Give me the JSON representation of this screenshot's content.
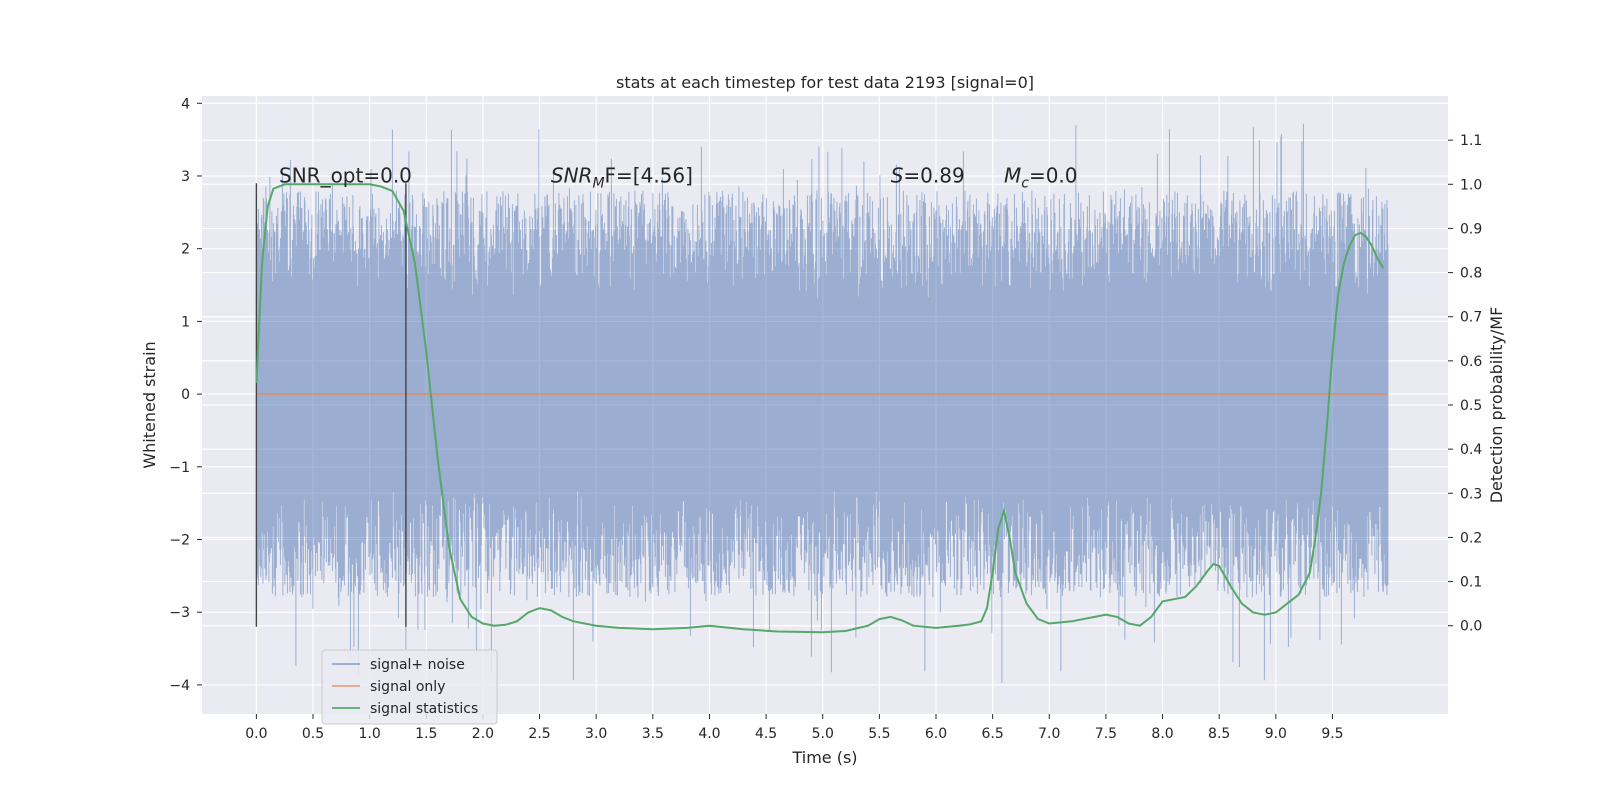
{
  "chart_data": {
    "type": "line",
    "title": "stats at each timestep for test data 2193 [signal=0]",
    "xlabel": "Time (s)",
    "ylabel": "Whitened strain",
    "y2label": "Detection probability/MF",
    "xlim": [
      -0.48,
      10.52
    ],
    "ylim": [
      -4.4,
      4.1
    ],
    "y2lim": [
      -0.2,
      1.2
    ],
    "xticks": [
      "0.0",
      "0.5",
      "1.0",
      "1.5",
      "2.0",
      "2.5",
      "3.0",
      "3.5",
      "4.0",
      "4.5",
      "5.0",
      "5.5",
      "6.0",
      "6.5",
      "7.0",
      "7.5",
      "8.0",
      "8.5",
      "9.0",
      "9.5"
    ],
    "yticks": [
      "4",
      "3",
      "2",
      "1",
      "0",
      "−1",
      "−2",
      "−3",
      "−4"
    ],
    "y2ticks": [
      "0.0",
      "0.1",
      "0.2",
      "0.3",
      "0.4",
      "0.5",
      "0.6",
      "0.7",
      "0.8",
      "0.9",
      "1.0",
      "1.1"
    ],
    "grid": true,
    "legend_position": "lower-left",
    "colors": {
      "noise": "#4c72b0",
      "signal": "#dd8452",
      "stats": "#55a868",
      "vline": "#444444",
      "background": "#eaeaf2",
      "grid": "#ffffff"
    },
    "series": [
      {
        "name": "signal+ noise",
        "axis": "left",
        "x_range": [
          0.0,
          9.99
        ],
        "band": {
          "core_min": -1.3,
          "core_max": 1.3,
          "typical_min": -2.8,
          "typical_max": 2.8,
          "extreme_max": 3.72,
          "extreme_min": -4.0
        }
      },
      {
        "name": "signal only",
        "axis": "left",
        "x": [
          0.0,
          9.99
        ],
        "y": [
          0.0,
          0.0
        ]
      },
      {
        "name": "signal statistics",
        "axis": "right",
        "x": [
          0.0,
          0.05,
          0.1,
          0.15,
          0.25,
          0.4,
          0.6,
          0.8,
          1.0,
          1.1,
          1.2,
          1.3,
          1.4,
          1.5,
          1.6,
          1.7,
          1.8,
          1.9,
          2.0,
          2.1,
          2.2,
          2.3,
          2.4,
          2.5,
          2.6,
          2.7,
          2.8,
          3.0,
          3.2,
          3.5,
          3.8,
          4.0,
          4.3,
          4.6,
          5.0,
          5.2,
          5.4,
          5.5,
          5.6,
          5.7,
          5.8,
          6.0,
          6.2,
          6.3,
          6.4,
          6.45,
          6.5,
          6.55,
          6.6,
          6.65,
          6.7,
          6.8,
          6.9,
          7.0,
          7.2,
          7.4,
          7.5,
          7.6,
          7.7,
          7.8,
          7.9,
          8.0,
          8.1,
          8.2,
          8.3,
          8.4,
          8.45,
          8.5,
          8.6,
          8.7,
          8.8,
          8.9,
          9.0,
          9.1,
          9.2,
          9.3,
          9.35,
          9.4,
          9.45,
          9.5,
          9.55,
          9.6,
          9.65,
          9.7,
          9.75,
          9.8,
          9.85,
          9.9,
          9.95
        ],
        "y": [
          0.55,
          0.82,
          0.95,
          0.99,
          1.0,
          1.0,
          1.0,
          1.0,
          1.0,
          0.995,
          0.985,
          0.94,
          0.82,
          0.62,
          0.38,
          0.18,
          0.06,
          0.02,
          0.005,
          0.0,
          0.002,
          0.01,
          0.03,
          0.04,
          0.035,
          0.02,
          0.01,
          0.0,
          -0.005,
          -0.008,
          -0.005,
          0.0,
          -0.008,
          -0.013,
          -0.015,
          -0.012,
          0.0,
          0.015,
          0.02,
          0.012,
          0.0,
          -0.005,
          0.0,
          0.003,
          0.01,
          0.04,
          0.12,
          0.22,
          0.26,
          0.2,
          0.12,
          0.05,
          0.015,
          0.005,
          0.01,
          0.02,
          0.025,
          0.02,
          0.005,
          0.0,
          0.02,
          0.055,
          0.06,
          0.065,
          0.09,
          0.125,
          0.14,
          0.135,
          0.09,
          0.05,
          0.03,
          0.025,
          0.03,
          0.05,
          0.07,
          0.12,
          0.2,
          0.3,
          0.45,
          0.62,
          0.75,
          0.82,
          0.86,
          0.885,
          0.89,
          0.88,
          0.86,
          0.83,
          0.81
        ]
      }
    ],
    "vlines": [
      {
        "x": 0.0,
        "y": [
          -3.2,
          2.9
        ]
      },
      {
        "x": 1.32,
        "y": [
          -3.2,
          2.9
        ]
      }
    ],
    "annotations": [
      {
        "text": "SNR_opt=0.0",
        "x": 0.2,
        "y2": 1.0
      },
      {
        "text_main": "SNR",
        "text_sub": "M",
        "text_tail": "F=[4.56]",
        "x": 2.6,
        "y2": 1.0
      },
      {
        "text_main": "S",
        "text_tail": "=0.89",
        "x": 5.6,
        "y2": 1.0
      },
      {
        "text_main": "M",
        "text_sub": "c",
        "text_tail": "=0.0",
        "x": 6.6,
        "y2": 1.0
      }
    ]
  }
}
